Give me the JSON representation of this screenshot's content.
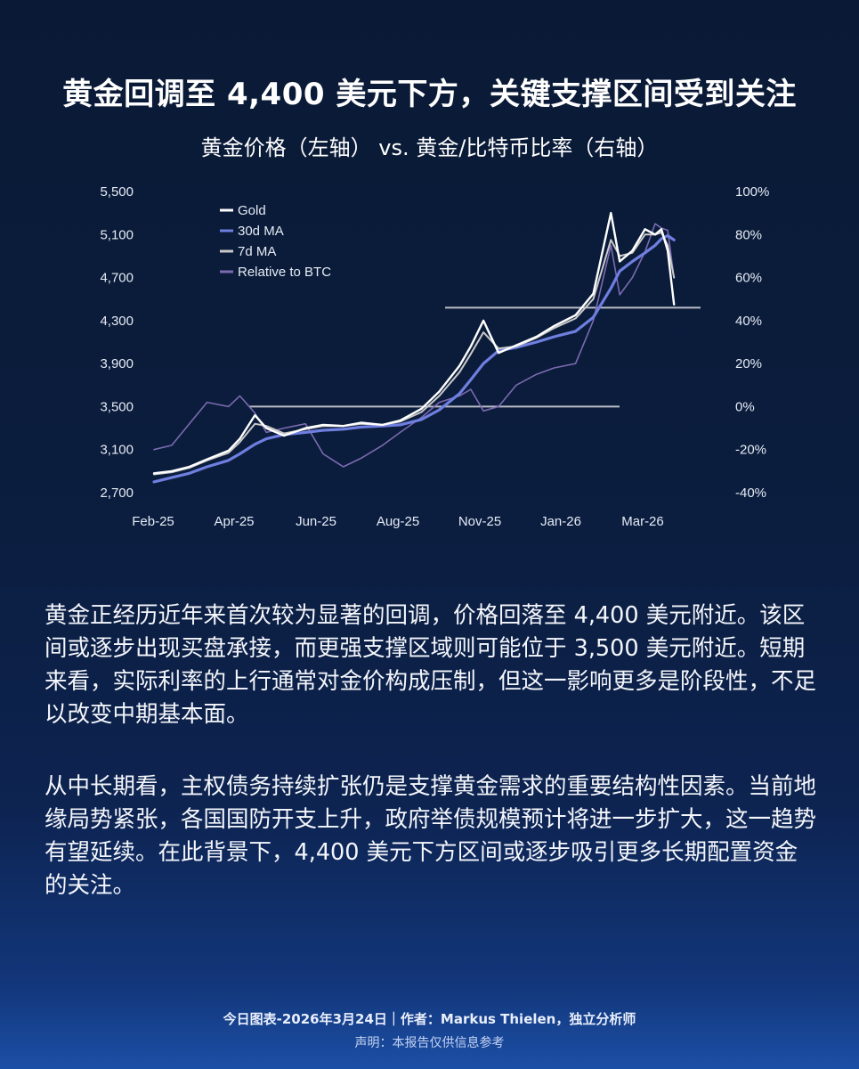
{
  "title": "黄金回调至 4,400 美元下方，关键支撑区间受到关注",
  "subtitle": "黄金价格（左轴） vs. 黄金/比特币比率（右轴）",
  "paragraphs": [
    "黄金正经历近年来首次较为显著的回调，价格回落至 4,400 美元附近。该区间或逐步出现买盘承接，而更强支撑区域则可能位于 3,500 美元附近。短期来看，实际利率的上行通常对金价构成压制，但这一影响更多是阶段性，不足以改变中期基本面。",
    "从中长期看，主权债务持续扩张仍是支撑黄金需求的重要结构性因素。当前地缘局势紧张，各国国防开支上升，政府举债规模预计将进一步扩大，这一趋势有望延续。在此背景下，4,400 美元下方区间或逐步吸引更多长期配置资金的关注。"
  ],
  "footer": {
    "main": "今日图表-2026年3月24日｜作者：Markus Thielen，独立分析师",
    "note": "声明：本报告仅供信息参考"
  },
  "colors": {
    "gold": "#ffffff",
    "ma30": "#6f7fe0",
    "ma7": "#c9c9c9",
    "btc": "#7b6ab0",
    "support": "#b9bcc6"
  },
  "chart_data": {
    "type": "line",
    "title": "",
    "x_ticks": [
      "Feb-25",
      "Apr-25",
      "Jun-25",
      "Aug-25",
      "Nov-25",
      "Jan-26",
      "Mar-26"
    ],
    "y_left": {
      "ticks": [
        "5,500",
        "5,100",
        "4,700",
        "4,300",
        "3,900",
        "3,500",
        "3,100",
        "2,700"
      ],
      "range": [
        2700,
        5500
      ]
    },
    "y_right": {
      "ticks": [
        "100%",
        "80%",
        "60%",
        "40%",
        "20%",
        "0%",
        "-20%",
        "-40%"
      ],
      "range": [
        -40,
        100
      ]
    },
    "legend": [
      "Gold",
      "30d MA",
      "7d MA",
      "Relative to BTC"
    ],
    "legend_position": "top-left",
    "x": [
      "2025-02-01",
      "2025-02-15",
      "2025-03-01",
      "2025-03-15",
      "2025-04-01",
      "2025-04-10",
      "2025-04-22",
      "2025-05-01",
      "2025-05-15",
      "2025-06-01",
      "2025-06-15",
      "2025-07-01",
      "2025-07-15",
      "2025-08-01",
      "2025-08-15",
      "2025-09-01",
      "2025-09-15",
      "2025-10-01",
      "2025-10-10",
      "2025-10-20",
      "2025-11-01",
      "2025-11-15",
      "2025-12-01",
      "2025-12-15",
      "2026-01-01",
      "2026-01-15",
      "2026-01-29",
      "2026-02-05",
      "2026-02-15",
      "2026-02-25",
      "2026-03-05",
      "2026-03-10",
      "2026-03-15",
      "2026-03-20"
    ],
    "series": [
      {
        "name": "Gold",
        "axis": "left",
        "values": [
          2880,
          2900,
          2940,
          3010,
          3090,
          3200,
          3420,
          3300,
          3230,
          3300,
          3330,
          3320,
          3350,
          3330,
          3370,
          3480,
          3640,
          3880,
          4060,
          4300,
          4000,
          4070,
          4150,
          4250,
          4350,
          4550,
          5300,
          4850,
          4950,
          5150,
          5100,
          5150,
          4950,
          4450
        ]
      },
      {
        "name": "30d MA",
        "axis": "left",
        "values": [
          2800,
          2840,
          2880,
          2940,
          3000,
          3060,
          3150,
          3200,
          3240,
          3260,
          3280,
          3290,
          3310,
          3320,
          3330,
          3380,
          3470,
          3620,
          3750,
          3900,
          4020,
          4050,
          4100,
          4150,
          4200,
          4330,
          4600,
          4760,
          4850,
          4930,
          5000,
          5060,
          5090,
          5050
        ]
      },
      {
        "name": "7d MA",
        "axis": "left",
        "values": [
          2870,
          2890,
          2930,
          3000,
          3070,
          3170,
          3340,
          3320,
          3250,
          3290,
          3320,
          3320,
          3340,
          3330,
          3360,
          3450,
          3600,
          3820,
          3990,
          4190,
          4040,
          4060,
          4140,
          4230,
          4320,
          4500,
          5050,
          4900,
          4930,
          5100,
          5100,
          5120,
          5000,
          4700
        ]
      },
      {
        "name": "Relative to BTC",
        "axis": "right",
        "values": [
          -20,
          -18,
          -8,
          2,
          0,
          5,
          -3,
          -12,
          -10,
          -8,
          -22,
          -28,
          -24,
          -18,
          -12,
          -5,
          2,
          5,
          8,
          -2,
          0,
          10,
          15,
          18,
          20,
          40,
          75,
          52,
          60,
          72,
          85,
          83,
          82,
          60
        ]
      }
    ],
    "support_levels": [
      3500,
      4420
    ]
  }
}
